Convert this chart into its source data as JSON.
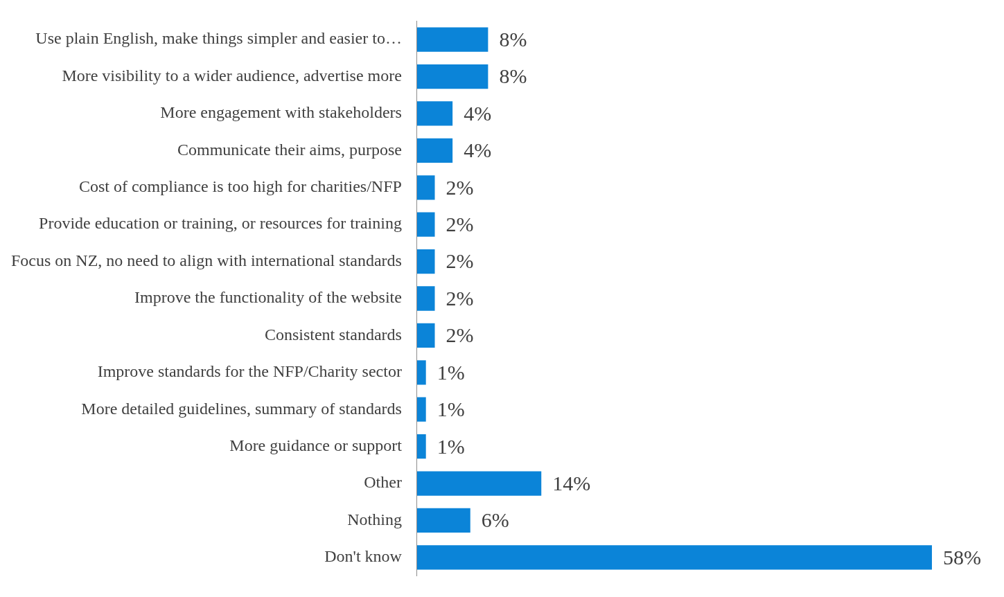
{
  "chart_data": {
    "type": "bar",
    "orientation": "horizontal",
    "categories": [
      "Use plain English, make things simpler and easier to…",
      "More visibility to a wider audience, advertise more",
      "More engagement with stakeholders",
      "Communicate their aims, purpose",
      "Cost of compliance is too high for charities/NFP",
      "Provide education or training, or resources for training",
      "Focus on NZ, no need to align with international standards",
      "Improve the functionality of the website",
      "Consistent standards",
      "Improve standards for the NFP/Charity sector",
      "More detailed guidelines, summary of standards",
      "More guidance or support",
      "Other",
      "Nothing",
      "Don't know"
    ],
    "values": [
      8,
      8,
      4,
      4,
      2,
      2,
      2,
      2,
      2,
      1,
      1,
      1,
      14,
      6,
      58
    ],
    "value_labels": [
      "8%",
      "8%",
      "4%",
      "4%",
      "2%",
      "2%",
      "2%",
      "2%",
      "2%",
      "1%",
      "1%",
      "1%",
      "14%",
      "6%",
      "58%"
    ],
    "color": "#0b84d8",
    "tick_labels": "y",
    "grid": false,
    "legend": false
  }
}
